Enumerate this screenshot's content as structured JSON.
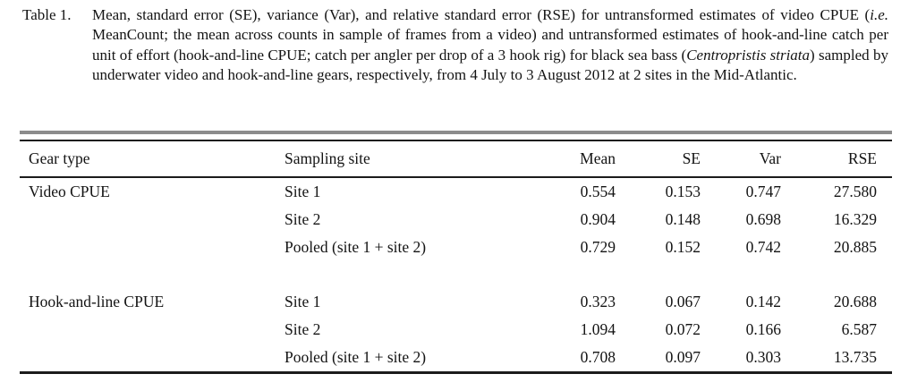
{
  "caption": {
    "label": "Table 1.",
    "parts": [
      "Mean, standard error (SE), variance (Var), and relative standard error (RSE) for untransformed estimates of video CPUE (",
      "i.e.",
      " MeanCount; the mean across counts in sample of frames from a video) and untransformed estimates of hook-and-line catch per unit of effort (hook-and-line CPUE; catch per angler per drop of a 3 hook rig) for black sea bass (",
      "Centropristis striata",
      ") sampled by underwater video and hook-and-line gears, respectively, from 4 July to 3 August 2012 at 2 sites in the Mid-Atlantic."
    ]
  },
  "table": {
    "headers": [
      "Gear type",
      "Sampling site",
      "Mean",
      "SE",
      "Var",
      "RSE"
    ],
    "rows": [
      {
        "gear": "Video CPUE",
        "site": "Site 1",
        "mean": "0.554",
        "se": "0.153",
        "var": "0.747",
        "rse": "27.580"
      },
      {
        "gear": "",
        "site": "Site 2",
        "mean": "0.904",
        "se": "0.148",
        "var": "0.698",
        "rse": "16.329"
      },
      {
        "gear": "",
        "site": "Pooled (site 1 + site 2)",
        "mean": "0.729",
        "se": "0.152",
        "var": "0.742",
        "rse": "20.885"
      },
      {
        "gear": "Hook-and-line CPUE",
        "site": "Site 1",
        "mean": "0.323",
        "se": "0.067",
        "var": "0.142",
        "rse": "20.688"
      },
      {
        "gear": "",
        "site": "Site 2",
        "mean": "1.094",
        "se": "0.072",
        "var": "0.166",
        "rse": "6.587"
      },
      {
        "gear": "",
        "site": "Pooled (site 1 + site 2)",
        "mean": "0.708",
        "se": "0.097",
        "var": "0.303",
        "rse": "13.735"
      }
    ],
    "colors": {
      "text": "#131313",
      "top_rule_gray": "#8c8c8c",
      "rule_black": "#1c1c1c",
      "background": "#ffffff"
    }
  }
}
